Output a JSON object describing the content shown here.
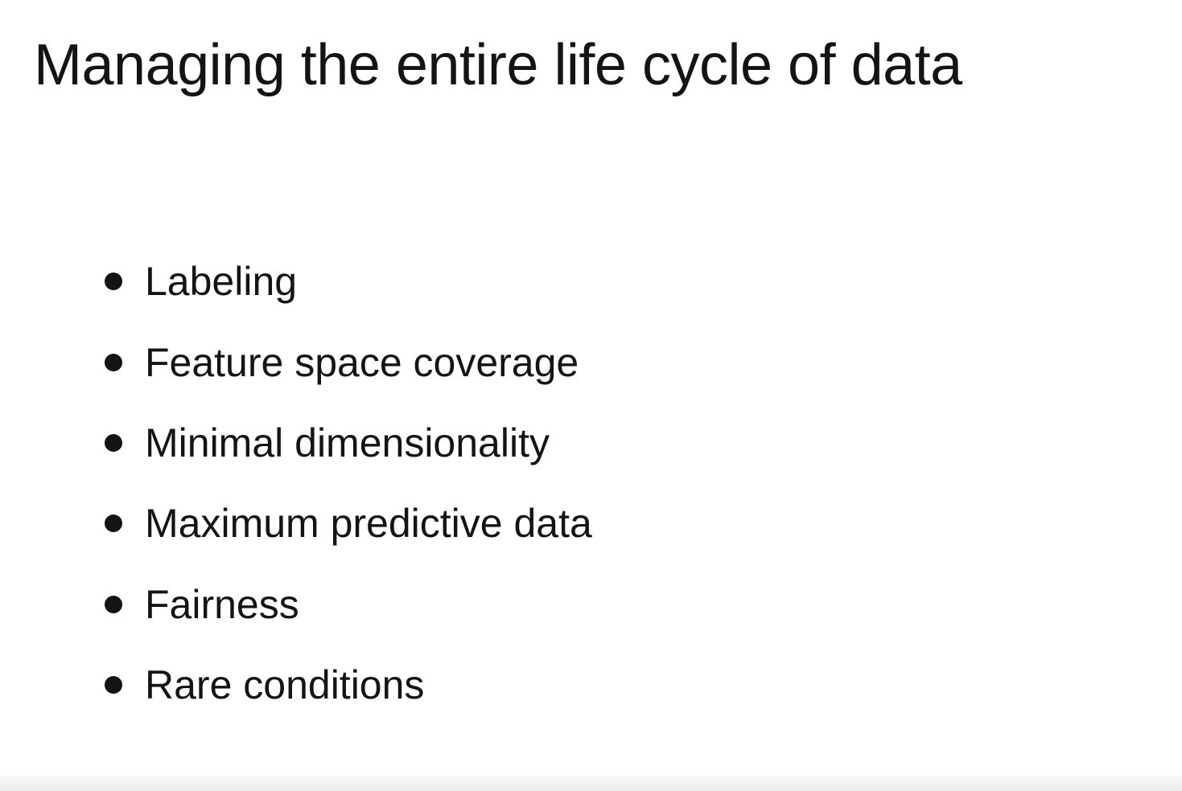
{
  "slide": {
    "title": "Managing the entire life cycle of data",
    "bullets": [
      "Labeling",
      "Feature space coverage",
      "Minimal dimensionality",
      "Maximum predictive data",
      "Fairness",
      "Rare conditions"
    ]
  }
}
